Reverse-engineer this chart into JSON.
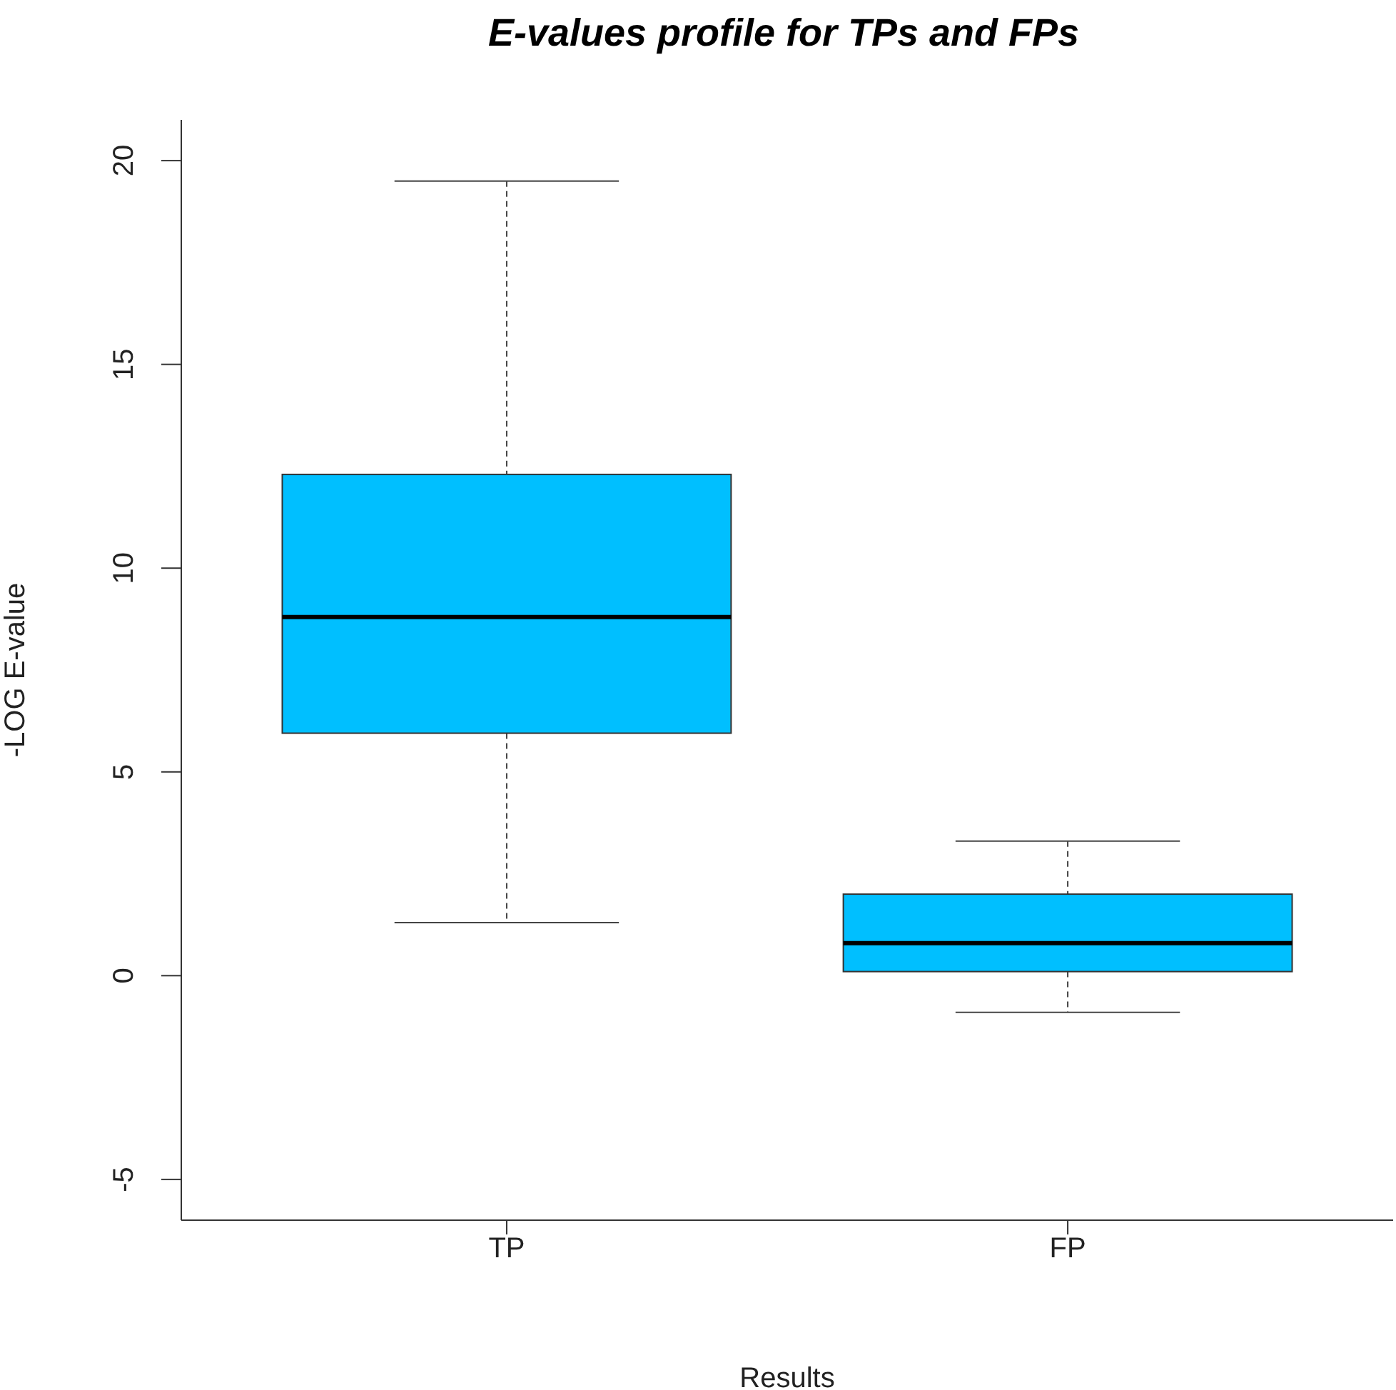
{
  "chart_data": {
    "type": "box",
    "title": "E-values profile for TPs and FPs",
    "xlabel": "Results",
    "ylabel": "-LOG E-value",
    "categories": [
      "TP",
      "FP"
    ],
    "boxes": [
      {
        "low": 1.3,
        "q1": 5.95,
        "median": 8.8,
        "q3": 12.3,
        "high": 19.5
      },
      {
        "low": -0.9,
        "q1": 0.1,
        "median": 0.8,
        "q3": 2.0,
        "high": 3.3
      }
    ],
    "color": "#00bfff",
    "ylim": [
      -6,
      21
    ],
    "yticks": [
      -5,
      0,
      5,
      10,
      15,
      20
    ]
  }
}
